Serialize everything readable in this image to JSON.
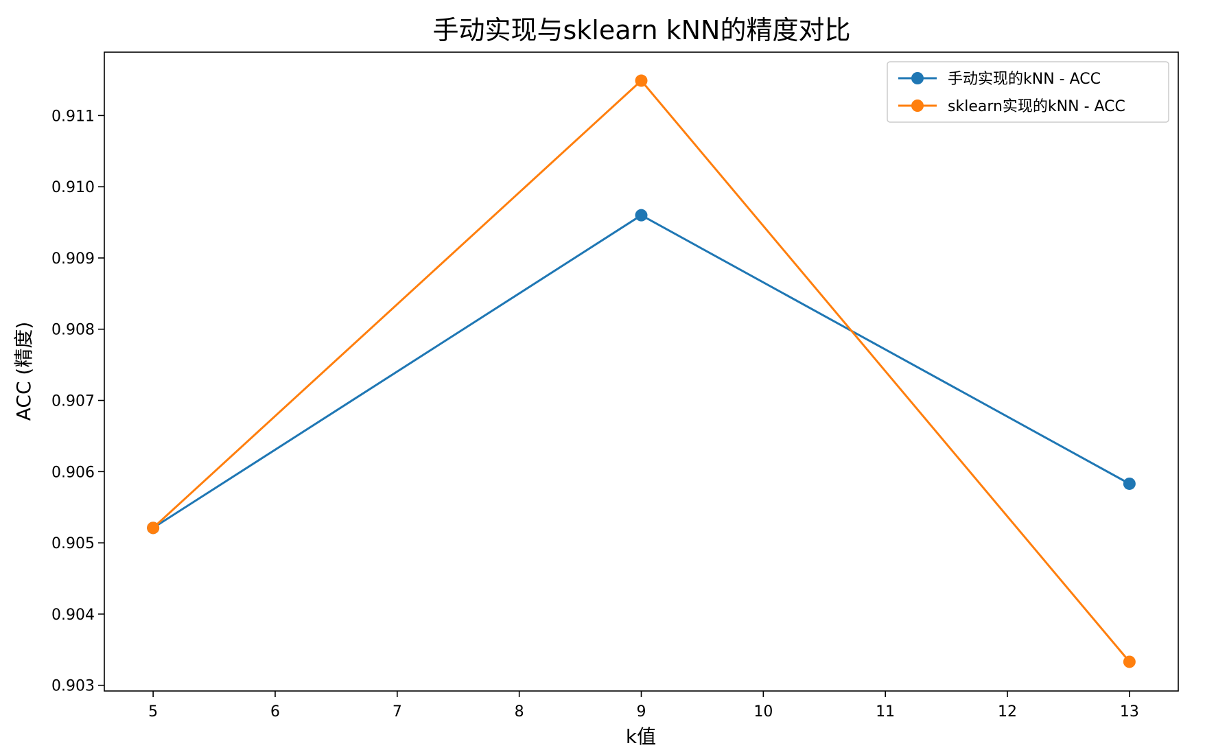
{
  "chart_data": {
    "type": "line",
    "title": "手动实现与sklearn kNN的精度对比",
    "xlabel": "k值",
    "ylabel": "ACC (精度)",
    "x": [
      5,
      9,
      13
    ],
    "xticks": [
      "5",
      "6",
      "7",
      "8",
      "9",
      "10",
      "11",
      "12",
      "13"
    ],
    "yticks": [
      "0.903",
      "0.904",
      "0.905",
      "0.906",
      "0.907",
      "0.908",
      "0.909",
      "0.910",
      "0.911"
    ],
    "xlim": [
      4.6,
      13.4
    ],
    "ylim": [
      0.90292,
      0.91189
    ],
    "grid": false,
    "legend_position": "top-right",
    "series": [
      {
        "name": "手动实现的kNN - ACC",
        "color": "#1f77b4",
        "values": [
          0.90521,
          0.9096,
          0.90583
        ]
      },
      {
        "name": "sklearn实现的kNN - ACC",
        "color": "#ff7f0e",
        "values": [
          0.90521,
          0.91149,
          0.90333
        ]
      }
    ]
  }
}
